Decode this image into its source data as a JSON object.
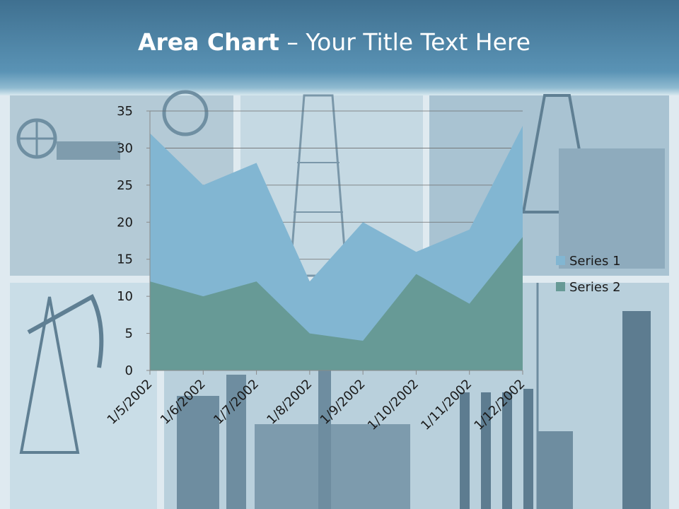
{
  "slide": {
    "title_bold": "Area Chart",
    "title_rest": " – Your Title Text Here"
  },
  "chart_data": {
    "type": "area",
    "categories": [
      "1/5/2002",
      "1/6/2002",
      "1/7/2002",
      "1/8/2002",
      "1/9/2002",
      "1/10/2002",
      "1/11/2002",
      "1/12/2002"
    ],
    "series": [
      {
        "name": "Series 1",
        "values": [
          32,
          25,
          28,
          12,
          20,
          16,
          19,
          33
        ],
        "color": "#82b6d2"
      },
      {
        "name": "Series 2",
        "values": [
          12,
          10,
          12,
          5,
          4,
          13,
          9,
          18
        ],
        "color": "#679a96"
      }
    ],
    "ylim": [
      0,
      35
    ],
    "yticks": [
      0,
      5,
      10,
      15,
      20,
      25,
      30,
      35
    ],
    "grid": true,
    "legend": "right"
  },
  "colors": {
    "header": "#4f86a8",
    "series1": "#82b6d2",
    "series2": "#679a96",
    "text": "#1a1a1a"
  }
}
